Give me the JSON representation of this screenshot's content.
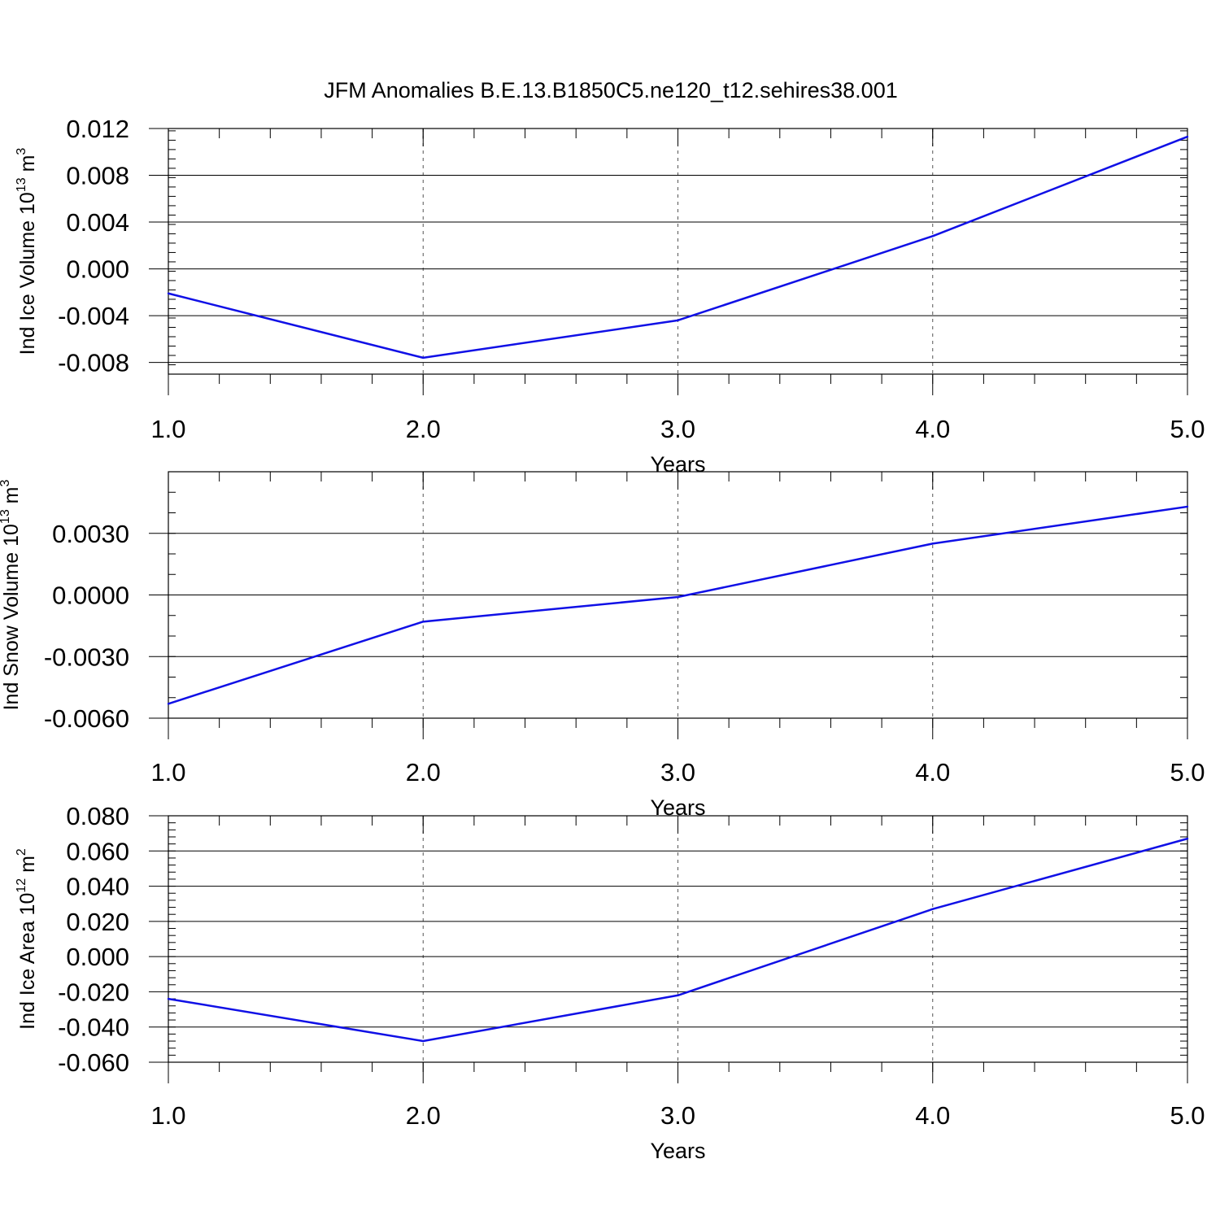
{
  "figure": {
    "title": "JFM Anomalies B.E.13.B1850C5.ne120_t12.sehires38.001"
  },
  "colors": {
    "line": "#1010e6",
    "axis": "#000000",
    "grid": "#555555"
  },
  "chart_data": [
    {
      "type": "line",
      "id": "ice-volume",
      "title": "",
      "xlabel": "Years",
      "ylabel_text": "Ind Ice Volume 10",
      "ylabel_exp": "13",
      "ylabel_unit": " m",
      "ylabel_unit_exp": "3",
      "x": [
        1.0,
        2.0,
        3.0,
        4.0,
        5.0
      ],
      "series": [
        {
          "name": "Ind Ice Volume",
          "values": [
            -0.0021,
            -0.0076,
            -0.0044,
            0.0028,
            0.0113
          ]
        }
      ],
      "xlim": [
        1.0,
        5.0
      ],
      "ylim": [
        -0.009,
        0.012
      ],
      "xticks": [
        1.0,
        2.0,
        3.0,
        4.0,
        5.0
      ],
      "xtick_labels": [
        "1.0",
        "2.0",
        "3.0",
        "4.0",
        "5.0"
      ],
      "xminor_step": 0.2,
      "yticks": [
        -0.008,
        -0.004,
        0.0,
        0.004,
        0.008,
        0.012
      ],
      "ytick_labels": [
        "-0.008",
        "-0.004",
        "0.000",
        "0.004",
        "0.008",
        "0.012"
      ],
      "yminor_step": 0.0008,
      "grid": "x-dashed"
    },
    {
      "type": "line",
      "id": "snow-volume",
      "title": "",
      "xlabel": "Years",
      "ylabel_text": "Ind Snow Volume 10",
      "ylabel_exp": "13",
      "ylabel_unit": " m",
      "ylabel_unit_exp": "3",
      "x": [
        1.0,
        2.0,
        3.0,
        4.0,
        5.0
      ],
      "series": [
        {
          "name": "Ind Snow Volume",
          "values": [
            -0.0053,
            -0.0013,
            -0.0001,
            0.0025,
            0.0043
          ]
        }
      ],
      "xlim": [
        1.0,
        5.0
      ],
      "ylim": [
        -0.006,
        0.006
      ],
      "xticks": [
        1.0,
        2.0,
        3.0,
        4.0,
        5.0
      ],
      "xtick_labels": [
        "1.0",
        "2.0",
        "3.0",
        "4.0",
        "5.0"
      ],
      "xminor_step": 0.2,
      "yticks": [
        -0.006,
        -0.003,
        0.0,
        0.003
      ],
      "ytick_labels": [
        "-0.0060",
        "-0.0030",
        "0.0000",
        "0.0030"
      ],
      "yminor_step": 0.001,
      "grid": "x-dashed"
    },
    {
      "type": "line",
      "id": "ice-area",
      "title": "",
      "xlabel": "Years",
      "ylabel_text": "Ind Ice Area 10",
      "ylabel_exp": "12",
      "ylabel_unit": " m",
      "ylabel_unit_exp": "2",
      "x": [
        1.0,
        2.0,
        3.0,
        4.0,
        5.0
      ],
      "series": [
        {
          "name": "Ind Ice Area",
          "values": [
            -0.024,
            -0.048,
            -0.022,
            0.027,
            0.067
          ]
        }
      ],
      "xlim": [
        1.0,
        5.0
      ],
      "ylim": [
        -0.06,
        0.08
      ],
      "xticks": [
        1.0,
        2.0,
        3.0,
        4.0,
        5.0
      ],
      "xtick_labels": [
        "1.0",
        "2.0",
        "3.0",
        "4.0",
        "5.0"
      ],
      "xminor_step": 0.2,
      "yticks": [
        -0.06,
        -0.04,
        -0.02,
        0.0,
        0.02,
        0.04,
        0.06,
        0.08
      ],
      "ytick_labels": [
        "-0.060",
        "-0.040",
        "-0.020",
        "0.000",
        "0.020",
        "0.040",
        "0.060",
        "0.080"
      ],
      "yminor_step": 0.004,
      "grid": "x-dashed"
    }
  ]
}
